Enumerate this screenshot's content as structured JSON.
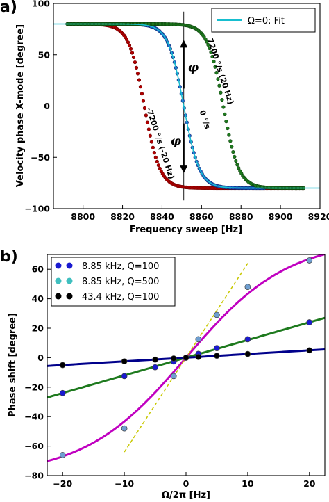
{
  "chart_data": [
    {
      "panel": "a)",
      "type": "scatter",
      "xlabel": "Frequency sweep [Hz]",
      "ylabel": "Velocity phase X-mode [degree]",
      "xlim": [
        8785,
        8920
      ],
      "ylim": [
        -100,
        100
      ],
      "xticks": [
        8800,
        8820,
        8840,
        8860,
        8880,
        8900,
        8920
      ],
      "yticks": [
        -100,
        -50,
        0,
        50,
        100
      ],
      "legend": {
        "placement": "top-right",
        "entries": [
          {
            "label": "Ω=0: Fit",
            "color": "#17becf"
          }
        ]
      },
      "fit": {
        "label": "Ω=0: Fit",
        "color": "#17becf",
        "x_range": [
          8785,
          8920
        ],
        "center": 8851,
        "width": 7.9,
        "amplitude": 80,
        "line_width_hz": 0
      },
      "series": [
        {
          "name": "-7200 °/s (-20 Hz)",
          "color": "#b00000",
          "edge": "#6e0000",
          "x_range": [
            8792,
            8912
          ],
          "step": 0.7,
          "center": 8831,
          "width": 7.9,
          "amplitude": 80,
          "label_text": "-7200 °/s (-20 Hz)"
        },
        {
          "name": "0 °/s",
          "color": "#1f5fcf",
          "edge": "#0a2a6e",
          "x_range": [
            8812,
            8892
          ],
          "step": 0.7,
          "center": 8851,
          "width": 7.9,
          "amplitude": 80,
          "label_text": "0 °/s"
        },
        {
          "name": "7200 °/s (20 Hz)",
          "color": "#1e7a1e",
          "edge": "#0c3f0c",
          "x_range": [
            8792,
            8912
          ],
          "step": 0.7,
          "center": 8871,
          "width": 7.9,
          "amplitude": 80,
          "label_text": "7200 °/s (20 Hz)"
        }
      ],
      "annotations": [
        {
          "symbol": "φ",
          "arrow": "up"
        },
        {
          "symbol": "φ",
          "arrow": "down"
        }
      ]
    },
    {
      "panel": "b)",
      "type": "scatter",
      "xlabel": "Ω/2π [Hz]",
      "ylabel": "Phase shift [degree]",
      "xlim": [
        -22.5,
        22.5
      ],
      "ylim": [
        -80,
        70
      ],
      "xticks": [
        -20,
        -10,
        0,
        10,
        20
      ],
      "yticks": [
        -80,
        -60,
        -40,
        -20,
        0,
        20,
        40,
        60
      ],
      "legend": {
        "placement": "top-left",
        "entries": [
          {
            "label": "8.85 kHz, Q=100",
            "color": "#1a1ad0"
          },
          {
            "label": "8.85 kHz, Q=500",
            "color": "#3fbfbf"
          },
          {
            "label": "43.4 kHz, Q=100",
            "color": "#000000"
          }
        ]
      },
      "series": [
        {
          "name": "8.85 kHz, Q=100",
          "marker_color": "#1a1ad0",
          "x": [
            -20,
            -10,
            -5,
            -2,
            0,
            2,
            5,
            10,
            20
          ],
          "y": [
            -24,
            -12.5,
            -6.5,
            -2.6,
            0,
            2.6,
            6.5,
            12.5,
            24
          ]
        },
        {
          "name": "8.85 kHz, Q=500",
          "marker_color": "#6f9fd0",
          "x": [
            -20,
            -10,
            -2,
            0,
            2,
            5,
            10,
            20
          ],
          "y": [
            -66,
            -48,
            -12.5,
            0,
            12.5,
            29,
            48,
            66
          ]
        },
        {
          "name": "43.4 kHz, Q=100",
          "marker_color": "#000000",
          "x": [
            -20,
            -10,
            -5,
            -2,
            0,
            2,
            5,
            10,
            20
          ],
          "y": [
            -5,
            -2.5,
            -1.3,
            -0.5,
            0,
            0.5,
            1.3,
            2.5,
            5
          ]
        }
      ],
      "fits": [
        {
          "color": "#00008b",
          "slope": 0.25
        },
        {
          "color": "#1e7a1e",
          "slope": 1.2
        },
        {
          "color": "#c000c0",
          "amplitude": 80,
          "width": 16.5
        }
      ],
      "linear_guide": {
        "color": "#c8c800",
        "x_range": [
          -10,
          10
        ],
        "slope": 6.4
      }
    }
  ]
}
